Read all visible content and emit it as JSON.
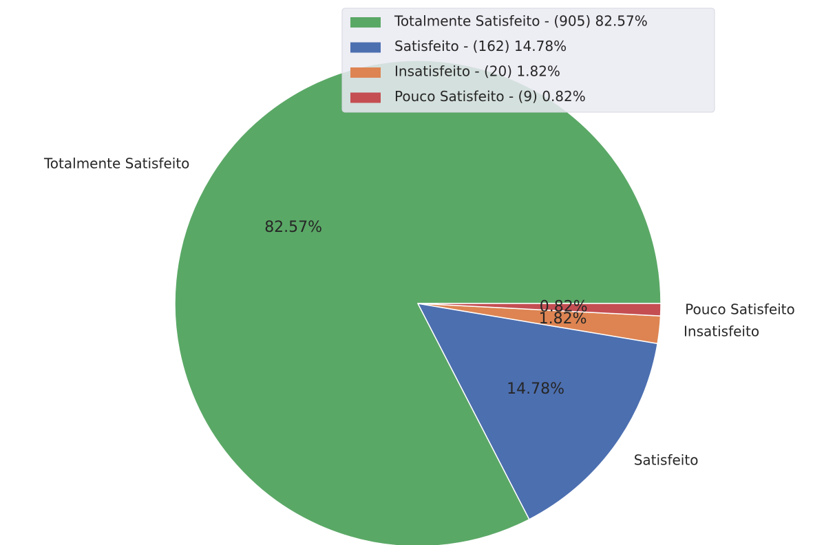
{
  "chart_data": {
    "type": "pie",
    "categories": [
      "Totalmente Satisfeito",
      "Satisfeito",
      "Insatisfeito",
      "Pouco Satisfeito"
    ],
    "values": [
      82.57,
      14.78,
      1.82,
      0.82
    ],
    "value_labels": [
      "82.57%",
      "14.78%",
      "1.82%",
      "0.82%"
    ],
    "colors": [
      "#5aa866",
      "#4c6fb0",
      "#dd8452",
      "#c44e52"
    ],
    "legend": {
      "position": "upper right",
      "labels": [
        "Totalmente Satisfeito - (905) 82.57%",
        "Satisfeito - (162) 14.78%",
        "Insatisfeito - (20) 1.82%",
        "Pouco Satisfeito - (9) 0.82%"
      ]
    }
  }
}
